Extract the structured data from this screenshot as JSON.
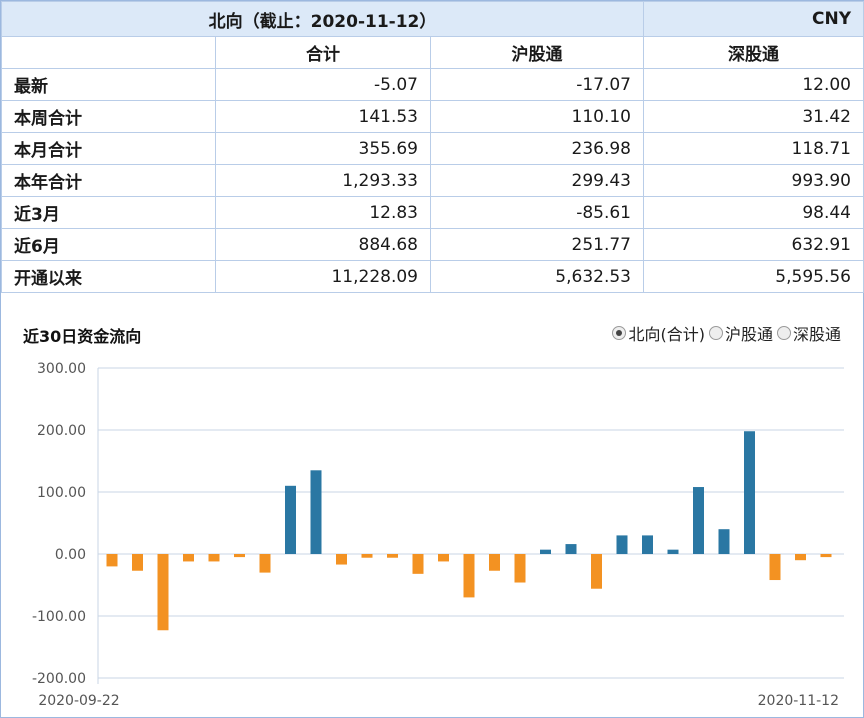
{
  "table": {
    "title": "北向（截止：2020-11-12）",
    "currency": "CNY",
    "columns": [
      "合计",
      "沪股通",
      "深股通"
    ],
    "rows": [
      {
        "label": "最新",
        "values": [
          "-5.07",
          "-17.07",
          "12.00"
        ]
      },
      {
        "label": "本周合计",
        "values": [
          "141.53",
          "110.10",
          "31.42"
        ]
      },
      {
        "label": "本月合计",
        "values": [
          "355.69",
          "236.98",
          "118.71"
        ]
      },
      {
        "label": "本年合计",
        "values": [
          "1,293.33",
          "299.43",
          "993.90"
        ]
      },
      {
        "label": "近3月",
        "values": [
          "12.83",
          "-85.61",
          "98.44"
        ]
      },
      {
        "label": "近6月",
        "values": [
          "884.68",
          "251.77",
          "632.91"
        ]
      },
      {
        "label": "开通以来",
        "values": [
          "11,228.09",
          "5,632.53",
          "5,595.56"
        ]
      }
    ]
  },
  "chart_header": {
    "title": "近30日资金流向",
    "options": [
      {
        "label": "北向(合计)",
        "selected": true
      },
      {
        "label": "沪股通",
        "selected": false
      },
      {
        "label": "深股通",
        "selected": false
      }
    ]
  },
  "colors": {
    "positive": "#2a77a3",
    "negative": "#f39222",
    "grid": "#c9d6e6",
    "axis_text": "#555555"
  },
  "chart_data": {
    "type": "bar",
    "title": "近30日资金流向",
    "xlabel": "",
    "ylabel": "",
    "ylim": [
      -200,
      300
    ],
    "yticks": [
      "300.00",
      "200.00",
      "100.00",
      "0.00",
      "-100.00",
      "-200.00"
    ],
    "x_start_label": "2020-09-22",
    "x_end_label": "2020-11-12",
    "grid": true,
    "values": [
      -20,
      -27,
      -123,
      -12,
      -12,
      -5,
      -30,
      110,
      135,
      -17,
      -6,
      -6,
      -32,
      -12,
      -70,
      -27,
      -46,
      7,
      16,
      -56,
      30,
      30,
      7,
      108,
      40,
      198,
      -42,
      -10,
      -5
    ]
  }
}
